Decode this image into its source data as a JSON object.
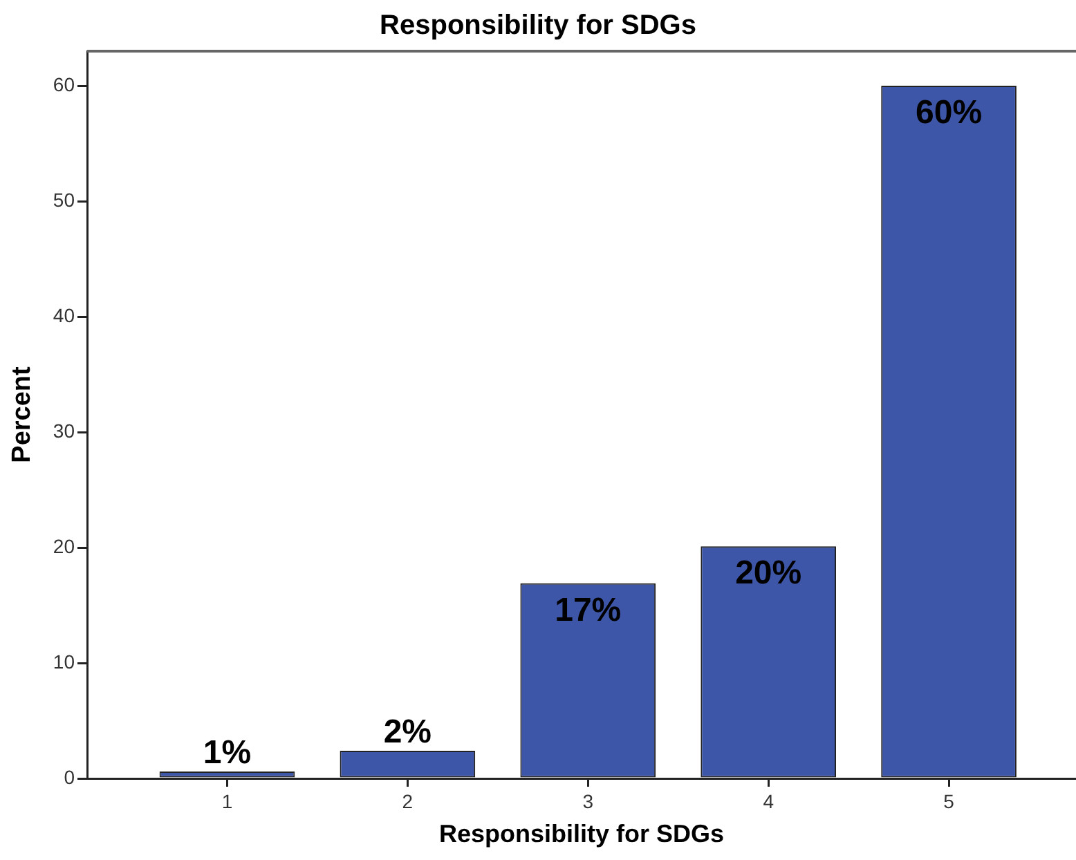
{
  "chart_data": {
    "type": "bar",
    "title": "Responsibility for SDGs",
    "xlabel": "Responsibility for SDGs",
    "ylabel": "Percent",
    "categories": [
      "1",
      "2",
      "3",
      "4",
      "5"
    ],
    "values": [
      0.6,
      2.4,
      16.9,
      20.1,
      60
    ],
    "value_labels": [
      "1%",
      "2%",
      "17%",
      "20%",
      "60%"
    ],
    "color": "#3e56a8",
    "ylim": [
      0,
      63
    ],
    "yticks": [
      0,
      10,
      20,
      30,
      40,
      50,
      60
    ]
  }
}
